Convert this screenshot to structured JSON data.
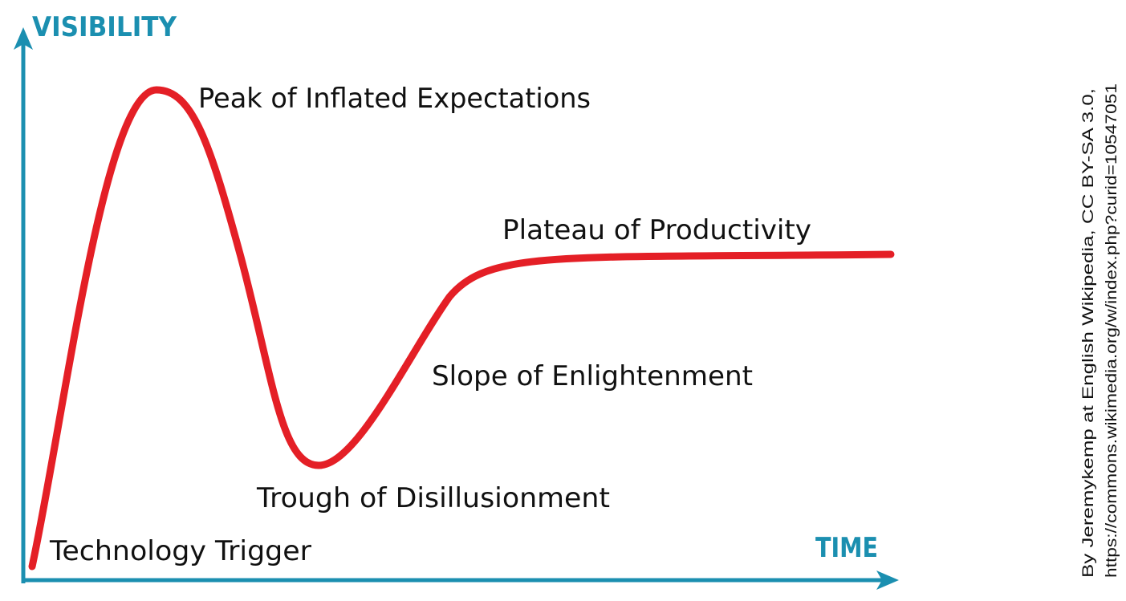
{
  "colors": {
    "axis": "#1b8fb0",
    "curve": "#e41f26",
    "text": "#111111",
    "background": "#ffffff"
  },
  "axes": {
    "y_label": "VISIBILITY",
    "x_label": "TIME"
  },
  "phases": [
    {
      "id": "technology-trigger",
      "label": "Technology Trigger"
    },
    {
      "id": "peak-of-inflated-expectations",
      "label": "Peak of Inflated Expectations"
    },
    {
      "id": "trough-of-disillusionment",
      "label": "Trough of Disillusionment"
    },
    {
      "id": "slope-of-enlightenment",
      "label": "Slope of Enlightenment"
    },
    {
      "id": "plateau-of-productivity",
      "label": "Plateau of Productivity"
    }
  ],
  "credit": {
    "line1": "By Jeremykemp at English Wikipedia, CC BY-SA 3.0,",
    "line2": "https://commons.wikimedia.org/w/index.php?curid=10547051"
  }
}
